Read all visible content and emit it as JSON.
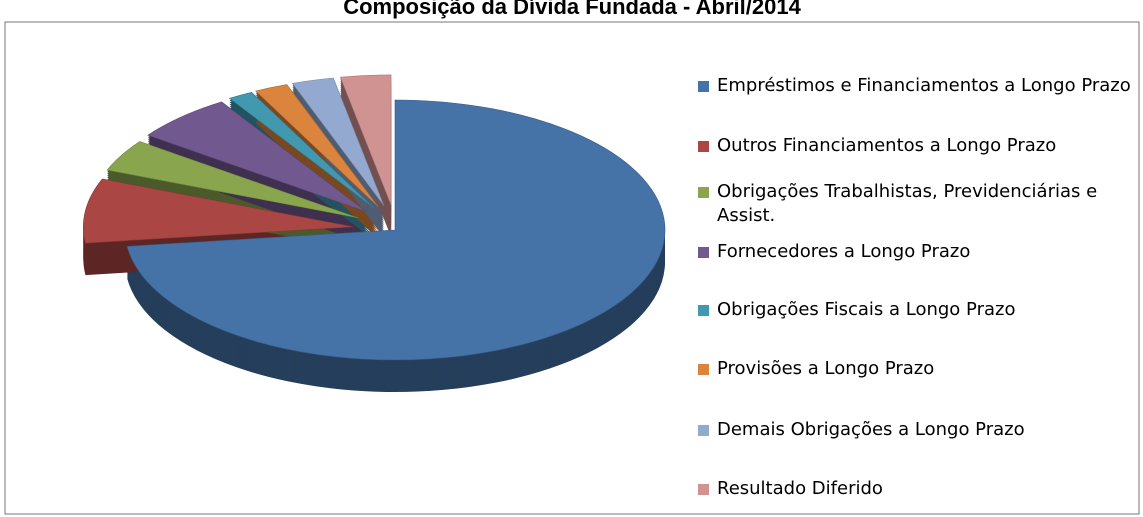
{
  "chart_data": {
    "type": "pie",
    "title": "Composição da Dívida Fundada - Abril/2014",
    "categories": [
      "Empréstimos e Financiamentos a Longo Prazo",
      "Outros Financiamentos a Longo Prazo",
      "Obrigações Trabalhistas, Previdenciárias e Assist.",
      "Fornecedores a Longo Prazo",
      "Obrigações Fiscais a Longo Prazo",
      "Provisões a Longo Prazo",
      "Demais Obrigações a Longo Prazo",
      "Resultado Diferido"
    ],
    "values": [
      73,
      8,
      4,
      6,
      1.5,
      2,
      2.5,
      3
    ],
    "colors": [
      "#4572a7",
      "#aa4643",
      "#89a54e",
      "#71588f",
      "#4198af",
      "#db843d",
      "#93a9cf",
      "#d19392"
    ],
    "legend": "right"
  }
}
